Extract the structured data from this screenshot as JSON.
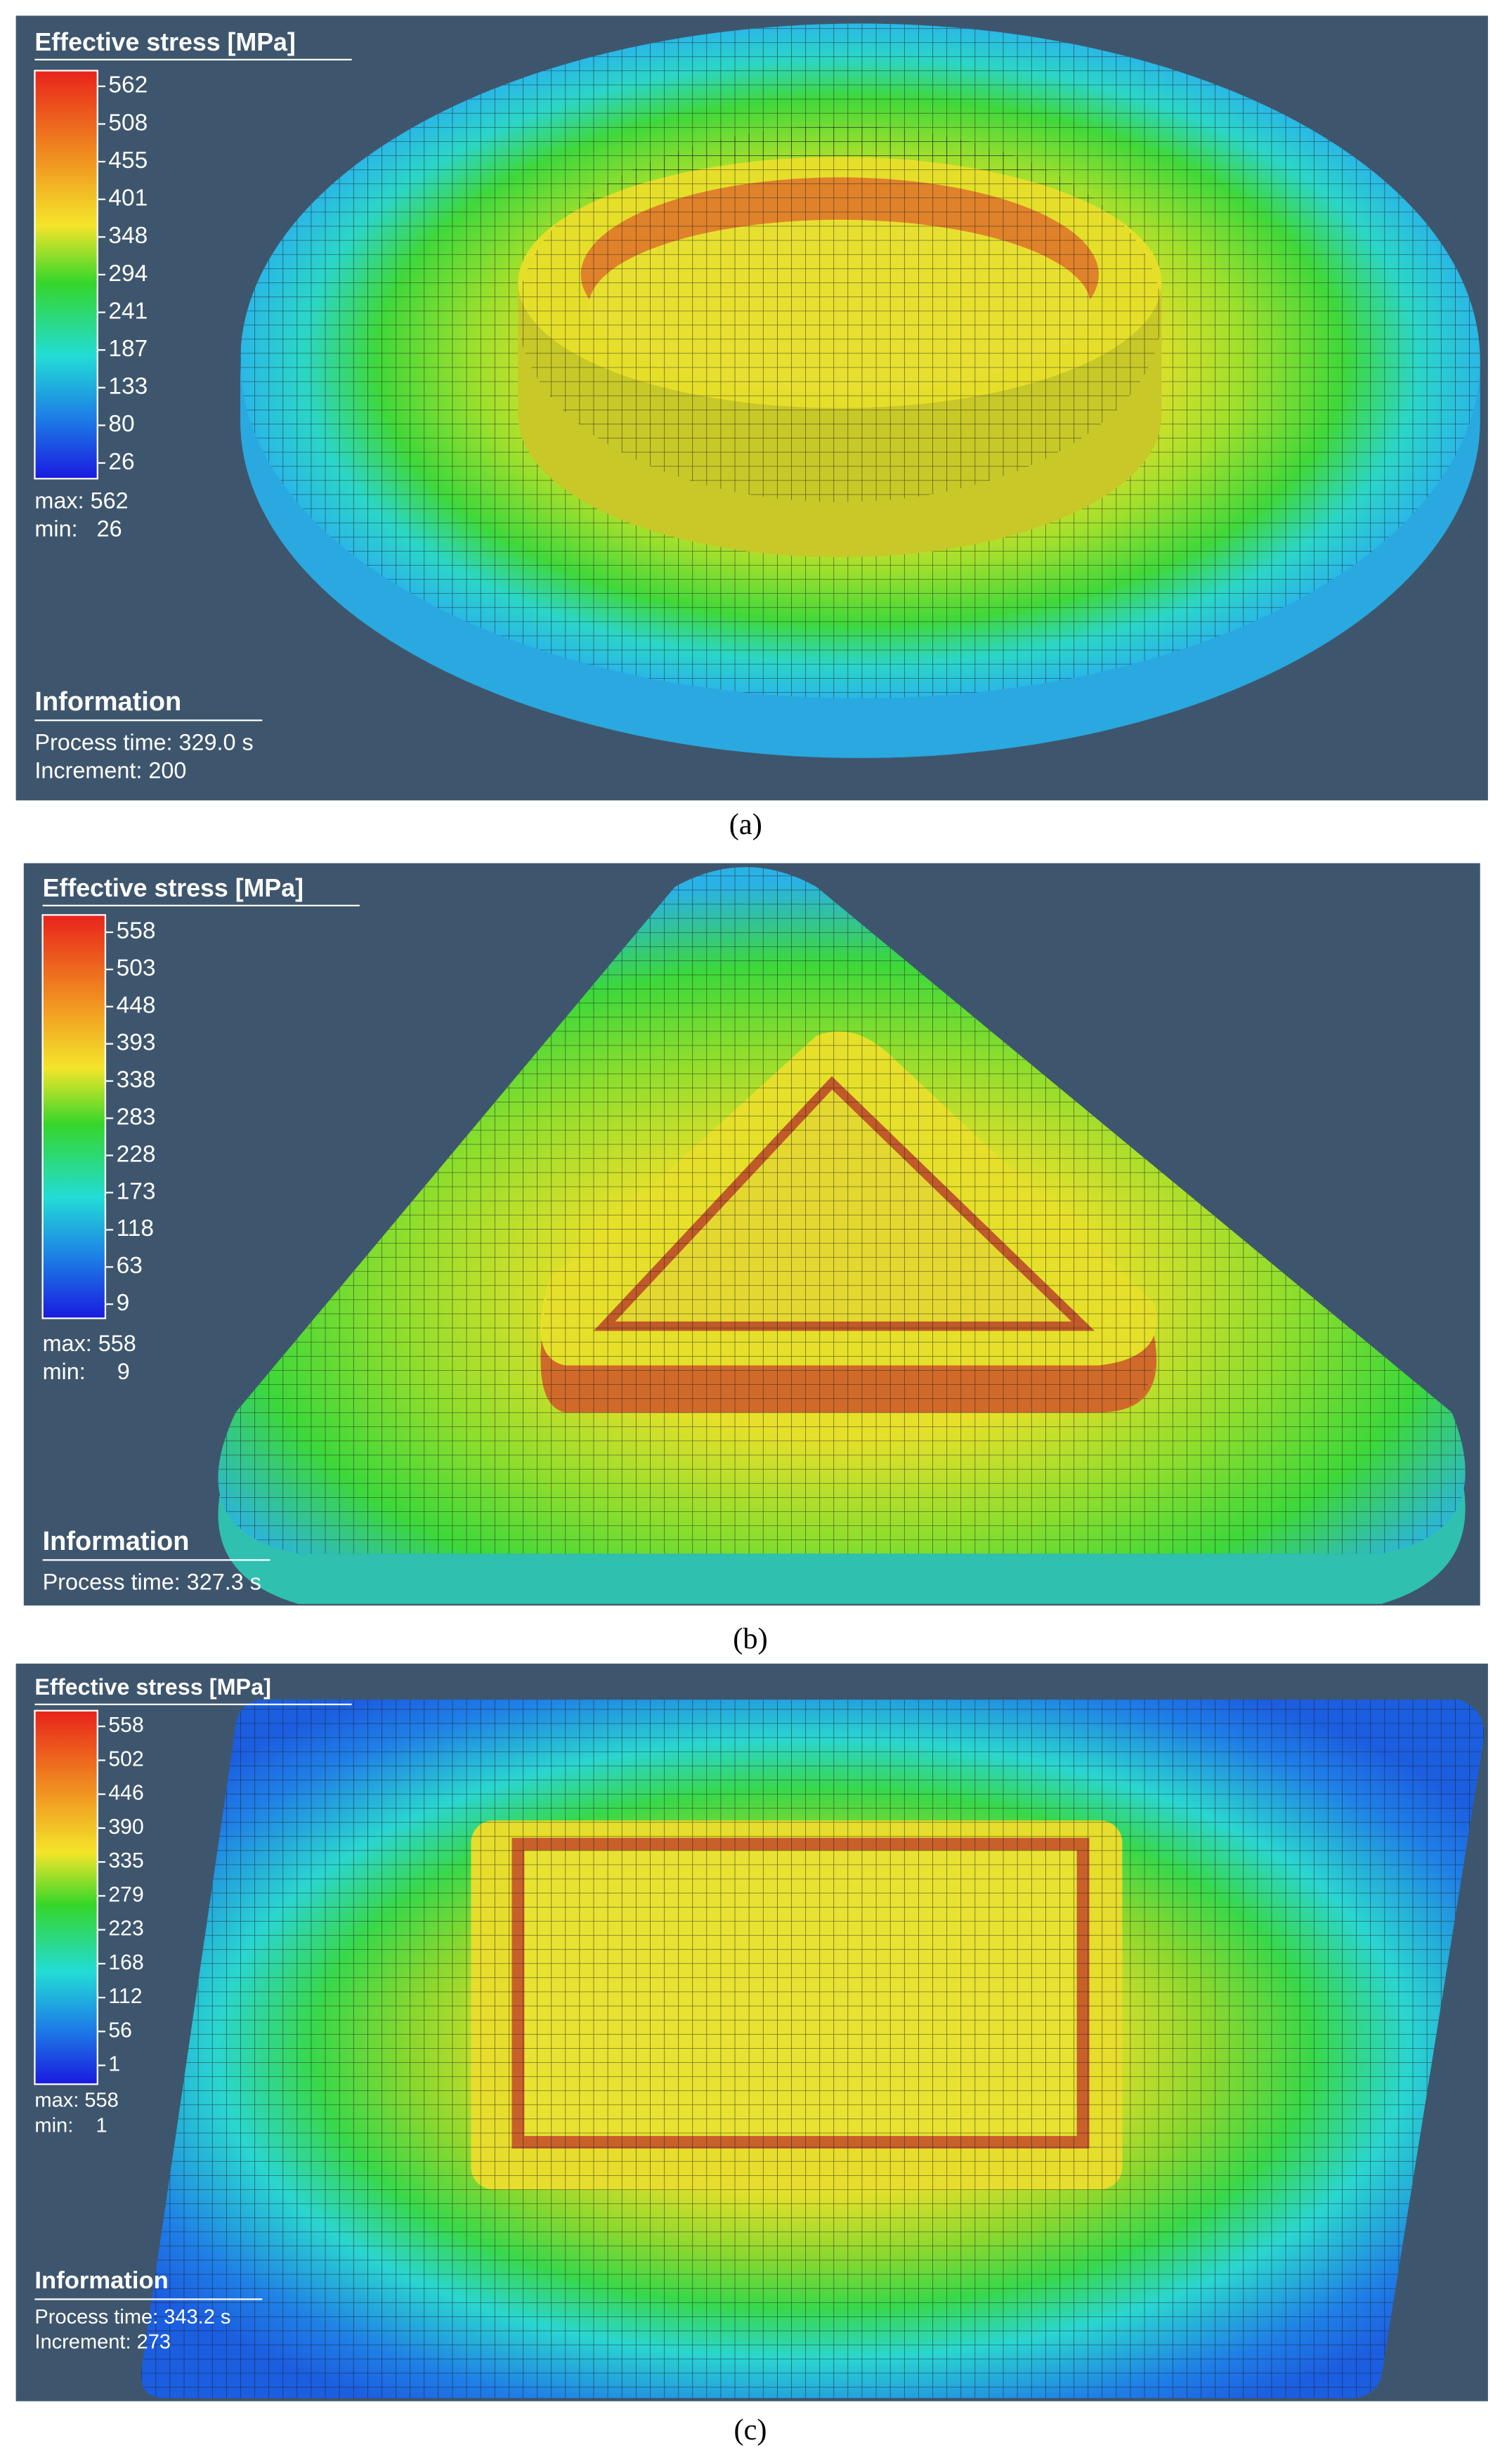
{
  "panels": [
    {
      "legend": {
        "title": "Effective stress [MPa]",
        "ticks": [
          562,
          508,
          455,
          401,
          348,
          294,
          241,
          187,
          133,
          80,
          26
        ],
        "max": "max: 562",
        "min": "min:   26"
      },
      "information": {
        "title": "Information",
        "lines": [
          "Process time: 329.0 s",
          "Increment: 200"
        ]
      },
      "caption": "(a)"
    },
    {
      "legend": {
        "title": "Effective stress [MPa]",
        "ticks": [
          558,
          503,
          448,
          393,
          338,
          283,
          228,
          173,
          118,
          63,
          9
        ],
        "max": "max: 558",
        "min": "min:     9"
      },
      "information": {
        "title": "Information",
        "lines": [
          "Process time: 327.3 s"
        ]
      },
      "caption": "(b)"
    },
    {
      "legend": {
        "title": "Effective stress [MPa]",
        "ticks": [
          558,
          502,
          446,
          390,
          335,
          279,
          223,
          168,
          112,
          56,
          1
        ],
        "max": "max: 558",
        "min": "min:    1"
      },
      "information": {
        "title": "Information",
        "lines": [
          "Process time: 343.2 s",
          "Increment: 273"
        ]
      },
      "caption": "(c)"
    }
  ]
}
